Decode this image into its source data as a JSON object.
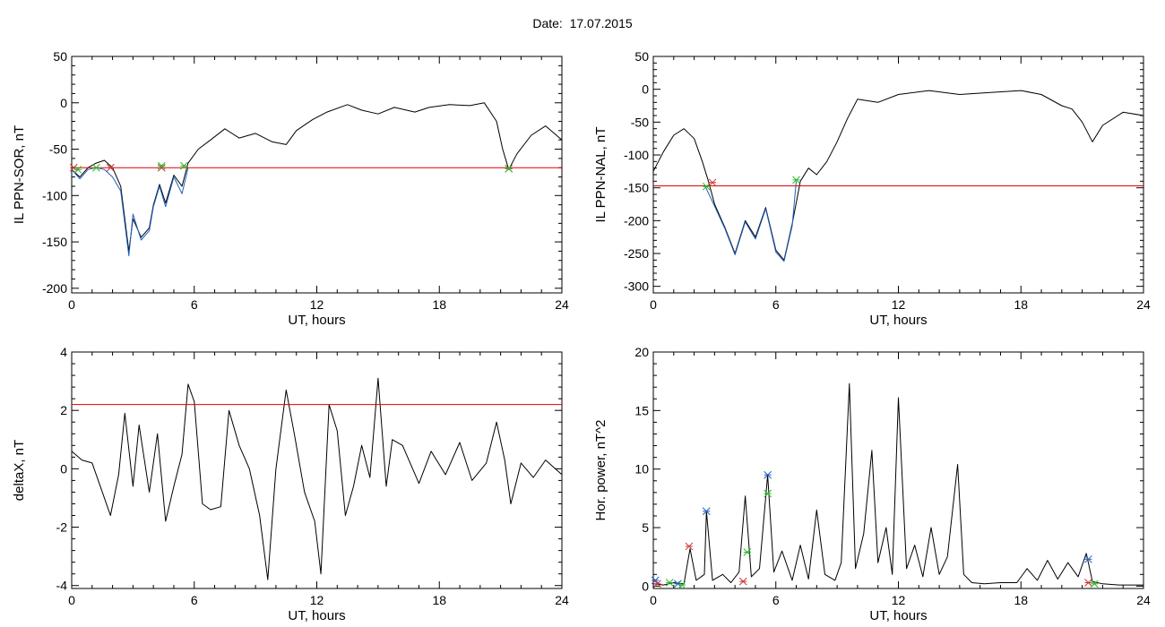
{
  "page": {
    "title": "Date:  17.07.2015"
  },
  "chart_data": [
    {
      "id": "top-left",
      "type": "line",
      "xlabel": "UT, hours",
      "ylabel": "IL PPN-SOR, nT",
      "xlim": [
        0,
        24
      ],
      "ylim": [
        -205,
        50
      ],
      "xticks": [
        0,
        6,
        12,
        18,
        24
      ],
      "yticks": [
        -200,
        -150,
        -100,
        -50,
        0,
        50
      ],
      "threshold": -70,
      "series": [
        {
          "color": "#000000",
          "values": [
            [
              0,
              -72
            ],
            [
              0.4,
              -80
            ],
            [
              0.8,
              -70
            ],
            [
              1.2,
              -65
            ],
            [
              1.6,
              -62
            ],
            [
              2.0,
              -70
            ],
            [
              2.4,
              -90
            ],
            [
              2.8,
              -160
            ],
            [
              3.0,
              -125
            ],
            [
              3.4,
              -145
            ],
            [
              3.8,
              -135
            ],
            [
              4.0,
              -110
            ],
            [
              4.3,
              -88
            ],
            [
              4.6,
              -108
            ],
            [
              5.0,
              -78
            ],
            [
              5.4,
              -90
            ],
            [
              5.7,
              -65
            ],
            [
              6.2,
              -50
            ],
            [
              6.8,
              -40
            ],
            [
              7.5,
              -28
            ],
            [
              8.2,
              -38
            ],
            [
              9.0,
              -33
            ],
            [
              9.8,
              -42
            ],
            [
              10.5,
              -45
            ],
            [
              11.0,
              -30
            ],
            [
              11.8,
              -18
            ],
            [
              12.5,
              -10
            ],
            [
              13.5,
              -2
            ],
            [
              14.2,
              -8
            ],
            [
              15.0,
              -12
            ],
            [
              15.8,
              -5
            ],
            [
              16.8,
              -10
            ],
            [
              17.5,
              -5
            ],
            [
              18.5,
              -2
            ],
            [
              19.5,
              -3
            ],
            [
              20.2,
              0
            ],
            [
              20.8,
              -20
            ],
            [
              21.1,
              -50
            ],
            [
              21.4,
              -72
            ],
            [
              21.8,
              -55
            ],
            [
              22.5,
              -35
            ],
            [
              23.2,
              -25
            ],
            [
              24,
              -40
            ]
          ]
        },
        {
          "color": "#1f5fbf",
          "values": [
            [
              0,
              -72
            ],
            [
              0.4,
              -82
            ],
            [
              0.8,
              -72
            ],
            [
              1.2,
              -70
            ],
            [
              1.6,
              -72
            ],
            [
              2.0,
              -80
            ],
            [
              2.4,
              -95
            ],
            [
              2.8,
              -165
            ],
            [
              3.0,
              -120
            ],
            [
              3.4,
              -148
            ],
            [
              3.8,
              -138
            ],
            [
              4.0,
              -112
            ],
            [
              4.3,
              -90
            ],
            [
              4.6,
              -112
            ],
            [
              5.0,
              -80
            ],
            [
              5.4,
              -98
            ],
            [
              5.7,
              -70
            ]
          ]
        }
      ],
      "markers": [
        {
          "x": 0.1,
          "y": -70,
          "color": "#cc3333"
        },
        {
          "x": 0.3,
          "y": -72,
          "color": "#2bb52b"
        },
        {
          "x": 1.2,
          "y": -70,
          "color": "#2bb52b"
        },
        {
          "x": 1.9,
          "y": -70,
          "color": "#cc3333"
        },
        {
          "x": 4.4,
          "y": -70,
          "color": "#cc3333"
        },
        {
          "x": 4.4,
          "y": -68,
          "color": "#2bb52b"
        },
        {
          "x": 5.5,
          "y": -68,
          "color": "#2bb52b"
        },
        {
          "x": 21.4,
          "y": -71,
          "color": "#cc3333"
        },
        {
          "x": 21.4,
          "y": -71,
          "color": "#2bb52b"
        }
      ]
    },
    {
      "id": "top-right",
      "type": "line",
      "xlabel": "UT, hours",
      "ylabel": "IL PPN-NAL, nT",
      "xlim": [
        0,
        24
      ],
      "ylim": [
        -310,
        50
      ],
      "xticks": [
        0,
        6,
        12,
        18,
        24
      ],
      "yticks": [
        -300,
        -250,
        -200,
        -150,
        -100,
        -50,
        0,
        50
      ],
      "threshold": -147,
      "series": [
        {
          "color": "#000000",
          "values": [
            [
              0,
              -125
            ],
            [
              0.5,
              -95
            ],
            [
              1.0,
              -70
            ],
            [
              1.5,
              -60
            ],
            [
              2.0,
              -75
            ],
            [
              2.4,
              -110
            ],
            [
              2.7,
              -140
            ],
            [
              3.0,
              -175
            ],
            [
              3.5,
              -210
            ],
            [
              4.0,
              -250
            ],
            [
              4.5,
              -200
            ],
            [
              5.0,
              -225
            ],
            [
              5.5,
              -180
            ],
            [
              6.0,
              -245
            ],
            [
              6.4,
              -260
            ],
            [
              6.8,
              -205
            ],
            [
              7.2,
              -140
            ],
            [
              7.6,
              -120
            ],
            [
              8.0,
              -130
            ],
            [
              8.5,
              -110
            ],
            [
              9.0,
              -80
            ],
            [
              9.5,
              -45
            ],
            [
              10.0,
              -15
            ],
            [
              11.0,
              -20
            ],
            [
              12.0,
              -8
            ],
            [
              13.5,
              -2
            ],
            [
              15.0,
              -8
            ],
            [
              16.5,
              -5
            ],
            [
              18.0,
              -2
            ],
            [
              19.0,
              -8
            ],
            [
              20.0,
              -25
            ],
            [
              20.5,
              -30
            ],
            [
              21.0,
              -50
            ],
            [
              21.5,
              -80
            ],
            [
              22.0,
              -55
            ],
            [
              23.0,
              -35
            ],
            [
              24,
              -40
            ]
          ]
        },
        {
          "color": "#1f5fbf",
          "values": [
            [
              2.5,
              -145
            ],
            [
              3.0,
              -178
            ],
            [
              3.5,
              -212
            ],
            [
              4.0,
              -252
            ],
            [
              4.5,
              -202
            ],
            [
              5.0,
              -228
            ],
            [
              5.5,
              -182
            ],
            [
              6.0,
              -248
            ],
            [
              6.4,
              -262
            ],
            [
              6.8,
              -208
            ],
            [
              7.0,
              -140
            ]
          ]
        }
      ],
      "markers": [
        {
          "x": 2.6,
          "y": -148,
          "color": "#2bb52b"
        },
        {
          "x": 2.9,
          "y": -142,
          "color": "#cc3333"
        },
        {
          "x": 7.0,
          "y": -138,
          "color": "#2bb52b"
        }
      ]
    },
    {
      "id": "bottom-left",
      "type": "line",
      "xlabel": "UT, hours",
      "ylabel": "deltaX, nT",
      "xlim": [
        0,
        24
      ],
      "ylim": [
        -4.1,
        4
      ],
      "xticks": [
        0,
        6,
        12,
        18,
        24
      ],
      "yticks": [
        -4,
        -2,
        0,
        2,
        4
      ],
      "threshold": 2.2,
      "series": [
        {
          "color": "#000000",
          "values": [
            [
              0,
              0.6
            ],
            [
              0.5,
              0.3
            ],
            [
              1.0,
              0.2
            ],
            [
              1.5,
              -0.8
            ],
            [
              1.9,
              -1.6
            ],
            [
              2.3,
              -0.2
            ],
            [
              2.6,
              1.9
            ],
            [
              3.0,
              -0.6
            ],
            [
              3.3,
              1.5
            ],
            [
              3.8,
              -0.8
            ],
            [
              4.2,
              1.2
            ],
            [
              4.6,
              -1.8
            ],
            [
              5.0,
              -0.6
            ],
            [
              5.4,
              0.5
            ],
            [
              5.7,
              2.9
            ],
            [
              6.0,
              2.3
            ],
            [
              6.4,
              -1.2
            ],
            [
              6.8,
              -1.4
            ],
            [
              7.3,
              -1.3
            ],
            [
              7.7,
              2.0
            ],
            [
              8.2,
              0.8
            ],
            [
              8.7,
              0.0
            ],
            [
              9.2,
              -1.6
            ],
            [
              9.6,
              -3.8
            ],
            [
              10.0,
              0.0
            ],
            [
              10.5,
              2.7
            ],
            [
              10.9,
              1.2
            ],
            [
              11.4,
              -0.8
            ],
            [
              11.9,
              -1.8
            ],
            [
              12.2,
              -3.6
            ],
            [
              12.6,
              2.2
            ],
            [
              13.0,
              1.3
            ],
            [
              13.4,
              -1.6
            ],
            [
              13.8,
              -0.6
            ],
            [
              14.2,
              0.8
            ],
            [
              14.6,
              -0.3
            ],
            [
              15.0,
              3.1
            ],
            [
              15.4,
              -0.6
            ],
            [
              15.7,
              1.0
            ],
            [
              16.2,
              0.8
            ],
            [
              17.0,
              -0.5
            ],
            [
              17.6,
              0.6
            ],
            [
              18.3,
              -0.2
            ],
            [
              19.0,
              0.9
            ],
            [
              19.6,
              -0.4
            ],
            [
              20.3,
              0.2
            ],
            [
              20.8,
              1.6
            ],
            [
              21.2,
              0.3
            ],
            [
              21.5,
              -1.2
            ],
            [
              22.0,
              0.2
            ],
            [
              22.6,
              -0.3
            ],
            [
              23.2,
              0.3
            ],
            [
              24,
              -0.2
            ]
          ]
        }
      ],
      "markers": []
    },
    {
      "id": "bottom-right",
      "type": "line",
      "xlabel": "UT, hours",
      "ylabel": "Hor. power, nT^2",
      "xlim": [
        0,
        24
      ],
      "ylim": [
        -0.2,
        20
      ],
      "xticks": [
        0,
        6,
        12,
        18,
        24
      ],
      "yticks": [
        0,
        5,
        10,
        15,
        20
      ],
      "threshold": null,
      "series": [
        {
          "color": "#000000",
          "values": [
            [
              0,
              0.2
            ],
            [
              0.5,
              0.1
            ],
            [
              1.0,
              0.3
            ],
            [
              1.5,
              0.2
            ],
            [
              1.8,
              3.2
            ],
            [
              2.1,
              0.5
            ],
            [
              2.5,
              1.0
            ],
            [
              2.6,
              6.4
            ],
            [
              2.9,
              0.5
            ],
            [
              3.4,
              1.0
            ],
            [
              3.8,
              0.3
            ],
            [
              4.2,
              1.2
            ],
            [
              4.5,
              7.7
            ],
            [
              4.8,
              0.8
            ],
            [
              5.2,
              1.5
            ],
            [
              5.6,
              9.5
            ],
            [
              5.9,
              1.2
            ],
            [
              6.3,
              3.0
            ],
            [
              6.8,
              0.5
            ],
            [
              7.2,
              3.5
            ],
            [
              7.6,
              0.6
            ],
            [
              8.0,
              6.5
            ],
            [
              8.4,
              1.0
            ],
            [
              8.9,
              0.5
            ],
            [
              9.2,
              2.0
            ],
            [
              9.6,
              17.3
            ],
            [
              9.9,
              1.5
            ],
            [
              10.3,
              4.5
            ],
            [
              10.7,
              11.6
            ],
            [
              11.0,
              2.0
            ],
            [
              11.4,
              5.0
            ],
            [
              11.7,
              1.0
            ],
            [
              12.0,
              16.1
            ],
            [
              12.4,
              1.5
            ],
            [
              12.8,
              3.5
            ],
            [
              13.2,
              0.8
            ],
            [
              13.6,
              5.0
            ],
            [
              14.0,
              1.0
            ],
            [
              14.4,
              2.5
            ],
            [
              14.9,
              10.4
            ],
            [
              15.2,
              1.0
            ],
            [
              15.6,
              0.3
            ],
            [
              16.2,
              0.2
            ],
            [
              17.0,
              0.3
            ],
            [
              17.8,
              0.3
            ],
            [
              18.3,
              1.5
            ],
            [
              18.8,
              0.5
            ],
            [
              19.3,
              2.2
            ],
            [
              19.8,
              0.6
            ],
            [
              20.3,
              2.0
            ],
            [
              20.8,
              0.8
            ],
            [
              21.2,
              2.8
            ],
            [
              21.5,
              0.4
            ],
            [
              22.0,
              0.2
            ],
            [
              22.8,
              0.1
            ],
            [
              24,
              0.1
            ]
          ]
        }
      ],
      "markers": [
        {
          "x": 0.1,
          "y": 0.5,
          "color": "#1f5fbf"
        },
        {
          "x": 0.2,
          "y": 0.2,
          "color": "#cc3333"
        },
        {
          "x": 0.8,
          "y": 0.3,
          "color": "#2bb52b"
        },
        {
          "x": 1.2,
          "y": 0.2,
          "color": "#1f5fbf"
        },
        {
          "x": 1.4,
          "y": 0.1,
          "color": "#2bb52b"
        },
        {
          "x": 1.75,
          "y": 3.4,
          "color": "#cc3333"
        },
        {
          "x": 2.6,
          "y": 6.4,
          "color": "#1f5fbf"
        },
        {
          "x": 4.4,
          "y": 0.4,
          "color": "#cc3333"
        },
        {
          "x": 4.6,
          "y": 2.9,
          "color": "#2bb52b"
        },
        {
          "x": 5.6,
          "y": 9.5,
          "color": "#1f5fbf"
        },
        {
          "x": 5.6,
          "y": 7.9,
          "color": "#2bb52b"
        },
        {
          "x": 21.3,
          "y": 2.3,
          "color": "#1f5fbf"
        },
        {
          "x": 21.3,
          "y": 0.3,
          "color": "#cc3333"
        },
        {
          "x": 21.6,
          "y": 0.2,
          "color": "#2bb52b"
        }
      ]
    }
  ]
}
